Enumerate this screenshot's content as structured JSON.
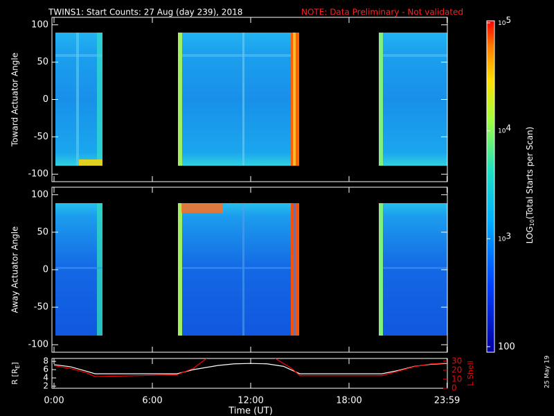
{
  "chart_data": [
    {
      "type": "spectrogram",
      "title": "TWINS1: Start Counts: 27 Aug (day 239), 2018",
      "note": "NOTE: Data Preliminary - Not validated",
      "ylabel": "Toward Actuator Angle",
      "ylim": [
        -110,
        110
      ],
      "yticks": [
        -100,
        -50,
        0,
        50,
        100
      ]
    },
    {
      "type": "spectrogram",
      "ylabel": "Away Actuator Angle",
      "ylim": [
        -110,
        110
      ],
      "yticks": [
        -100,
        -50,
        0,
        50,
        100
      ]
    },
    {
      "type": "line",
      "xlabel": "Time (UT)",
      "xlim": [
        0,
        24
      ],
      "xticks": [
        {
          "value": 0,
          "label": "0:00"
        },
        {
          "value": 6,
          "label": "6:00"
        },
        {
          "value": 12,
          "label": "12:00"
        },
        {
          "value": 18,
          "label": "18:00"
        },
        {
          "value": 23.98,
          "label": "23:59"
        }
      ],
      "ylabel": [
        "R [R",
        "E",
        "]"
      ],
      "ylim": [
        1.5,
        8.7
      ],
      "yticks": [
        2,
        4,
        6,
        8
      ],
      "y2label": "L Shell",
      "y2lim": [
        0,
        33
      ],
      "y2ticks": [
        0,
        10,
        20,
        30
      ],
      "series": [
        {
          "color": "#ffffff",
          "x": [
            0,
            1,
            2,
            2.5,
            7.5,
            8.5,
            10,
            11,
            12,
            13,
            14,
            15,
            20,
            21,
            22,
            23,
            24
          ],
          "values": [
            7.2,
            6.7,
            5.6,
            5.0,
            5.0,
            6.0,
            7.0,
            7.4,
            7.5,
            7.4,
            6.8,
            5.0,
            5.0,
            5.8,
            6.8,
            7.3,
            7.5
          ]
        },
        {
          "color": "#ff0000",
          "axis": "y2",
          "x": [
            0,
            1,
            2,
            2.5,
            7.5,
            8.5,
            9.3,
            12,
            13.5,
            14.5,
            15,
            20,
            21,
            22,
            23,
            24
          ],
          "values": [
            25,
            22,
            17,
            13,
            15,
            22,
            33,
            null,
            33,
            22,
            14,
            14,
            19,
            24,
            27,
            28
          ]
        }
      ]
    },
    {
      "type": "colorbar",
      "label": [
        "LOG",
        "10",
        "(Total Starts per Scan)"
      ],
      "log": true,
      "ylim": [
        100,
        100000
      ],
      "yticks": [
        {
          "value": 100,
          "label": "100"
        },
        {
          "value": 1000,
          "label": "10",
          "sup": "3"
        },
        {
          "value": 10000,
          "label": "10",
          "sup": "4"
        },
        {
          "value": 100000,
          "label": "10",
          "sup": "5"
        }
      ]
    }
  ],
  "footer": {
    "date": "25 May 19"
  }
}
